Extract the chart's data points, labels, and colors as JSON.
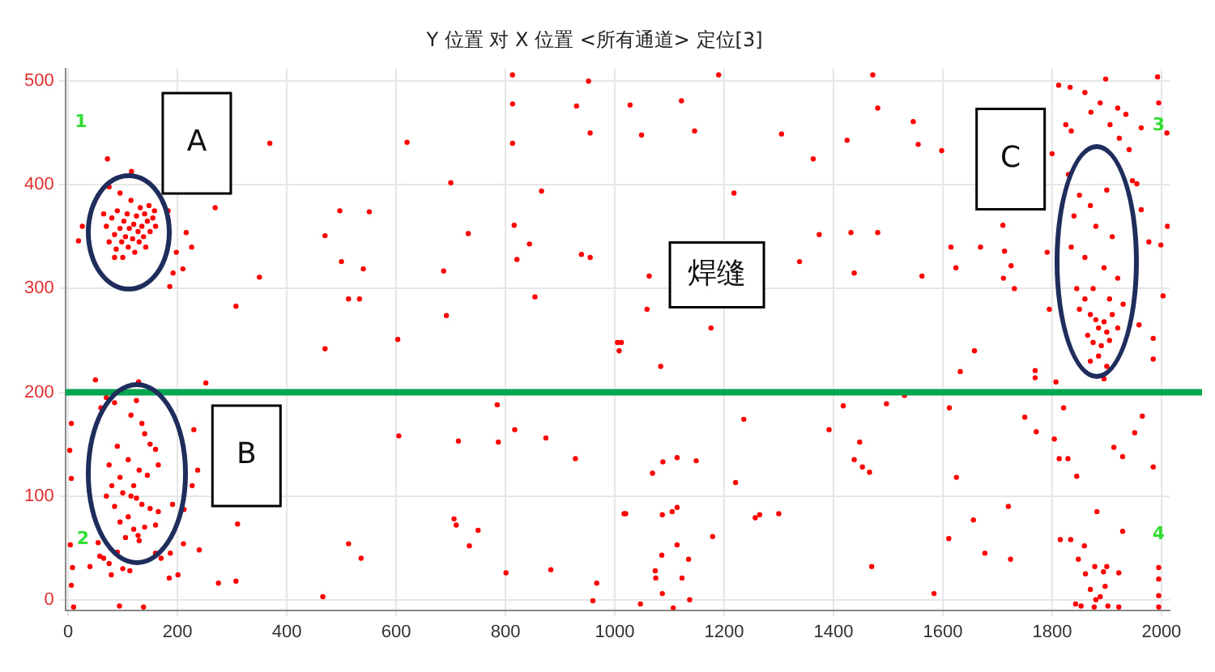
{
  "chart_data": {
    "type": "scatter",
    "title": "Y 位置 对 X 位置 <所有通道> 定位[3]",
    "x": [
      72,
      116,
      183,
      269,
      369,
      216,
      198,
      226,
      210,
      192,
      186,
      350,
      307,
      19,
      26,
      470,
      497,
      551,
      500,
      540,
      513,
      533,
      470,
      603,
      620,
      700,
      732,
      687,
      692,
      813,
      813,
      813,
      816,
      821,
      844,
      854,
      866,
      930,
      952,
      955,
      939,
      955,
      1008,
      1012,
      1190,
      1472,
      1028,
      1122,
      1049,
      1146,
      1305,
      1363,
      1425,
      1481,
      1546,
      1555,
      1598,
      1218,
      1374,
      1432,
      1481,
      1338,
      1438,
      1562,
      1063,
      1059,
      1176,
      1084,
      1005,
      1658,
      1632,
      1710,
      1615,
      1669,
      1713,
      1725,
      1711,
      1731,
      1624,
      1769,
      1769,
      1807,
      1812,
      1833,
      1860,
      1898,
      1888,
      1920,
      1935,
      1871,
      1825,
      1835,
      1906,
      1923,
      1963,
      1993,
      1995,
      2010,
      1800,
      1941,
      1947,
      1955,
      1963,
      1977,
      1999,
      2011,
      2003,
      1985,
      1985,
      1959,
      1895,
      1791,
      1795,
      50,
      129,
      252,
      6,
      3,
      6,
      4,
      8,
      6,
      10,
      94,
      138,
      40,
      58,
      79,
      113,
      185,
      201,
      211,
      240,
      187,
      230,
      237,
      227,
      212,
      191,
      275,
      307,
      310,
      466,
      513,
      536,
      605,
      714,
      785,
      787,
      817,
      874,
      928,
      706,
      710,
      750,
      734,
      801,
      883,
      967,
      960,
      1017,
      1236,
      1221,
      1257,
      1265,
      1300,
      1179,
      1135,
      1123,
      1107,
      1087,
      1075,
      1074,
      1086,
      1114,
      1087,
      1105,
      1114,
      1020,
      1069,
      1088,
      1114,
      1149,
      1047,
      1137,
      1392,
      1418,
      1497,
      1530,
      1448,
      1438,
      1453,
      1466,
      1470,
      1584,
      1612,
      1625,
      1656,
      1611,
      1677,
      1720,
      1724,
      1750,
      1771,
      1804,
      1821,
      1813,
      1829,
      1845,
      1882,
      1815,
      1834,
      1859,
      1848,
      1861,
      1878,
      1894,
      1900,
      1922,
      1897,
      1870,
      1880,
      1888,
      1843,
      1853,
      1877,
      1902,
      1922,
      1913,
      1929,
      1951,
      1965,
      1985,
      1929,
      1995,
      1995,
      1995,
      1995,
      70,
      75,
      80,
      85,
      88,
      90,
      95,
      98,
      100,
      102,
      105,
      108,
      110,
      112,
      115,
      118,
      120,
      122,
      125,
      128,
      130,
      132,
      135,
      138,
      140,
      142,
      145,
      148,
      150,
      155,
      158,
      160,
      95,
      85,
      65,
      75,
      60,
      70,
      85,
      115,
      125,
      135,
      140,
      150,
      160,
      75,
      90,
      110,
      130,
      145,
      165,
      80,
      95,
      100,
      115,
      125,
      135,
      150,
      165,
      70,
      85,
      95,
      110,
      120,
      128,
      130,
      140,
      160,
      55,
      65,
      75,
      90,
      100,
      160,
      170,
      120,
      105,
      1830,
      1850,
      1870,
      1900,
      1840,
      1880,
      1910,
      1835,
      1860,
      1895,
      1920,
      1845,
      1875,
      1905,
      1850,
      1870,
      1880,
      1885,
      1895,
      1900,
      1910,
      1865,
      1875,
      1890,
      1905,
      1920,
      1860,
      1930,
      1885,
      1900,
      1870
    ],
    "values": [
      425,
      413,
      375,
      378,
      440,
      354,
      335,
      340,
      319,
      315,
      302,
      311,
      283,
      346,
      360,
      351,
      375,
      374,
      326,
      319,
      290,
      290,
      242,
      251,
      441,
      402,
      353,
      317,
      274,
      506,
      478,
      440,
      361,
      328,
      343,
      292,
      394,
      476,
      500,
      450,
      333,
      330,
      240,
      248,
      506,
      506,
      477,
      481,
      448,
      452,
      449,
      425,
      443,
      474,
      461,
      439,
      433,
      392,
      352,
      354,
      354,
      326,
      315,
      312,
      312,
      280,
      262,
      225,
      248,
      240,
      220,
      361,
      340,
      340,
      336,
      322,
      310,
      300,
      320,
      221,
      214,
      210,
      496,
      494,
      489,
      502,
      479,
      474,
      468,
      470,
      458,
      452,
      458,
      445,
      455,
      504,
      479,
      450,
      430,
      434,
      404,
      401,
      376,
      345,
      342,
      360,
      293,
      252,
      232,
      265,
      213,
      335,
      280,
      212,
      210,
      209,
      170,
      144,
      117,
      53,
      31,
      14,
      -7,
      -6,
      -7,
      32,
      42,
      24,
      28,
      21,
      24,
      54,
      48,
      45,
      164,
      125,
      110,
      87,
      92,
      16,
      18,
      73,
      3,
      54,
      40,
      158,
      153,
      188,
      152,
      164,
      156,
      136,
      78,
      72,
      67,
      52,
      26,
      29,
      16,
      -1,
      83,
      174,
      113,
      79,
      82,
      83,
      61,
      39,
      21,
      -8,
      6,
      21,
      28,
      43,
      53,
      82,
      85,
      89,
      83,
      122,
      133,
      137,
      134,
      -4,
      0,
      164,
      187,
      189,
      197,
      152,
      135,
      128,
      123,
      32,
      6,
      185,
      118,
      77,
      59,
      45,
      90,
      39,
      176,
      162,
      155,
      185,
      136,
      136,
      119,
      85,
      58,
      58,
      52,
      39,
      25,
      32,
      27,
      32,
      26,
      13,
      10,
      0,
      3,
      -4,
      -6,
      -7,
      -6,
      -7,
      147,
      138,
      161,
      177,
      128,
      66,
      31,
      20,
      4,
      -7,
      360,
      345,
      368,
      352,
      338,
      375,
      358,
      345,
      330,
      365,
      350,
      372,
      340,
      358,
      385,
      348,
      362,
      335,
      370,
      355,
      345,
      378,
      360,
      350,
      372,
      340,
      365,
      380,
      355,
      368,
      375,
      360,
      392,
      330,
      372,
      398,
      185,
      195,
      190,
      178,
      192,
      170,
      160,
      150,
      145,
      130,
      148,
      135,
      125,
      120,
      130,
      110,
      118,
      103,
      100,
      98,
      92,
      88,
      85,
      100,
      90,
      75,
      80,
      68,
      62,
      57,
      70,
      72,
      55,
      40,
      35,
      46,
      30,
      45,
      40,
      110,
      60,
      410,
      390,
      380,
      395,
      370,
      360,
      350,
      340,
      330,
      320,
      310,
      300,
      300,
      290,
      280,
      275,
      270,
      262,
      268,
      258,
      275,
      255,
      248,
      245,
      250,
      262,
      290,
      285,
      235,
      225,
      230
    ],
    "color": "#ff0000",
    "marker": "circle",
    "xlim": [
      -5,
      2015
    ],
    "xticks": [
      0,
      200,
      400,
      600,
      800,
      1000,
      1200,
      1400,
      1600,
      1800,
      2000
    ],
    "ylim": [
      -10,
      512
    ],
    "yticks": [
      0,
      100,
      200,
      300,
      400,
      500
    ],
    "grid": true,
    "legend": false,
    "ref_lines": [
      {
        "axis": "y",
        "value": 200,
        "color": "#00a650"
      }
    ],
    "annotations": [
      "A",
      "B",
      "C",
      "焊缝",
      "1",
      "2",
      "3",
      "4"
    ]
  }
}
